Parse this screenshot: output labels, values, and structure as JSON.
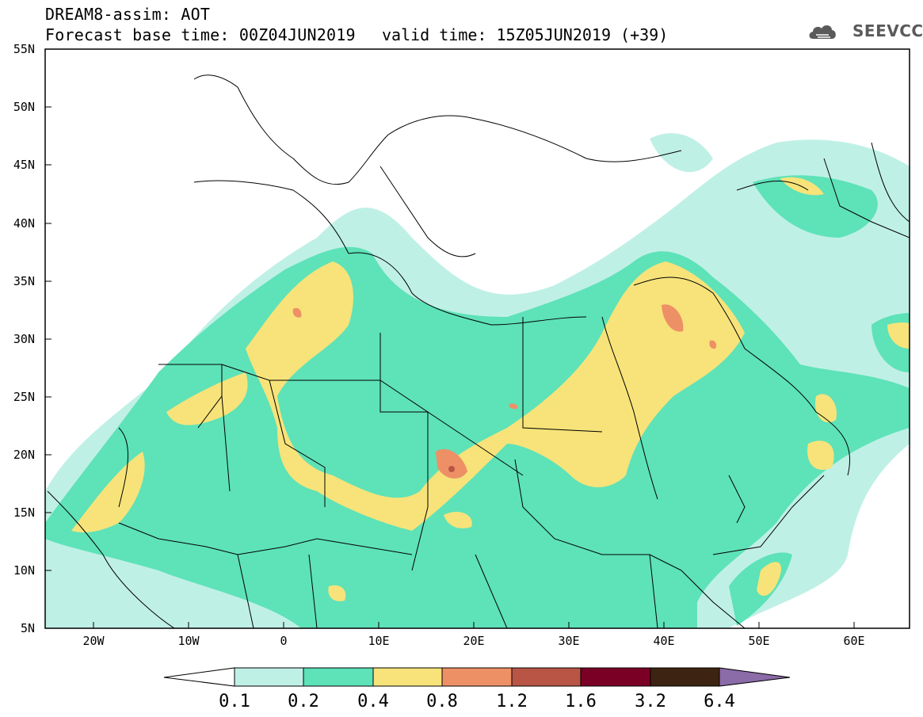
{
  "title": {
    "line1": "DREAM8-assim: AOT",
    "line2": "Forecast base time: 00Z04JUN2019",
    "valid": "valid time: 15Z05JUN2019 (+39)"
  },
  "logo": {
    "text": "SEEVCCC",
    "icon": "cloud-icon"
  },
  "axes": {
    "lat_labels": [
      "55N",
      "50N",
      "45N",
      "40N",
      "35N",
      "30N",
      "25N",
      "20N",
      "15N",
      "10N",
      "5N"
    ],
    "lon_labels": [
      "20W",
      "10W",
      "0",
      "10E",
      "20E",
      "30E",
      "40E",
      "50E",
      "60E"
    ]
  },
  "colorbar": {
    "labels": [
      "0.1",
      "0.2",
      "0.4",
      "0.8",
      "1.2",
      "1.6",
      "3.2",
      "6.4"
    ],
    "colors": [
      "#ffffff",
      "#bff0e6",
      "#5ee2b8",
      "#f7e37a",
      "#ee9066",
      "#b85545",
      "#7a0025",
      "#3d2412",
      "#8b6ba8"
    ]
  },
  "colors": {
    "aot_0_1": "#bff0e6",
    "aot_0_2": "#5ee2b8",
    "aot_0_4": "#f7e37a",
    "aot_0_8": "#ee9066",
    "aot_1_2": "#b85545",
    "border": "#000000"
  }
}
